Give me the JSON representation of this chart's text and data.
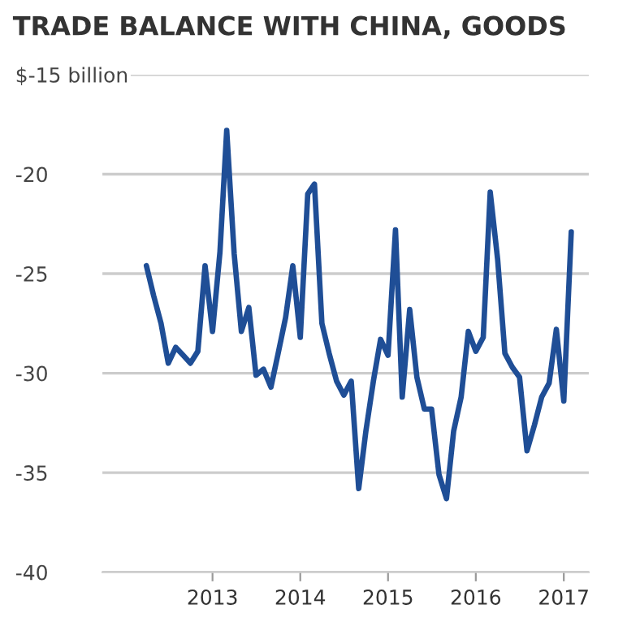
{
  "chart_data": {
    "type": "line",
    "title": "TRADE BALANCE WITH CHINA, GOODS",
    "x": [
      "2012-04",
      "2012-05",
      "2012-06",
      "2012-07",
      "2012-08",
      "2012-09",
      "2012-10",
      "2012-11",
      "2012-12",
      "2013-01",
      "2013-02",
      "2013-03",
      "2013-04",
      "2013-05",
      "2013-06",
      "2013-07",
      "2013-08",
      "2013-09",
      "2013-10",
      "2013-11",
      "2013-12",
      "2014-01",
      "2014-02",
      "2014-03",
      "2014-04",
      "2014-05",
      "2014-06",
      "2014-07",
      "2014-08",
      "2014-09",
      "2014-10",
      "2014-11",
      "2014-12",
      "2015-01",
      "2015-02",
      "2015-03",
      "2015-04",
      "2015-05",
      "2015-06",
      "2015-07",
      "2015-08",
      "2015-09",
      "2015-10",
      "2015-11",
      "2015-12",
      "2016-01",
      "2016-02",
      "2016-03",
      "2016-04",
      "2016-05",
      "2016-06",
      "2016-07",
      "2016-08",
      "2016-09",
      "2016-10",
      "2016-11",
      "2016-12",
      "2017-01",
      "2017-02"
    ],
    "series": [
      {
        "color": "#1f4e96",
        "values": [
          -24.6,
          -26.1,
          -27.5,
          -29.5,
          -28.7,
          -29.1,
          -29.5,
          -28.9,
          -24.6,
          -27.9,
          -23.9,
          -17.8,
          -24.0,
          -27.9,
          -26.7,
          -30.1,
          -29.8,
          -30.7,
          -29.0,
          -27.2,
          -24.6,
          -28.2,
          -21.0,
          -20.5,
          -27.5,
          -29.0,
          -30.4,
          -31.1,
          -30.4,
          -35.8,
          -32.9,
          -30.4,
          -28.3,
          -29.1,
          -22.8,
          -31.2,
          -26.8,
          -30.2,
          -31.8,
          -31.8,
          -35.1,
          -36.3,
          -32.9,
          -31.2,
          -27.9,
          -28.9,
          -28.2,
          -20.9,
          -24.3,
          -29.0,
          -29.7,
          -30.2,
          -33.9,
          -32.6,
          -31.2,
          -30.5,
          -27.8,
          -31.4,
          -22.9
        ]
      }
    ],
    "xlim": [
      "2011-10-01",
      "2017-04-15"
    ],
    "xticks": [
      "2013",
      "2014",
      "2015",
      "2016",
      "2017"
    ],
    "ylim": [
      -40,
      -15
    ],
    "yticks": [
      {
        "value": -15,
        "label": "$-15 billion"
      },
      -20,
      -25,
      -30,
      -35,
      -40
    ],
    "grid": "y",
    "marker": "none",
    "line_style": "solid"
  }
}
